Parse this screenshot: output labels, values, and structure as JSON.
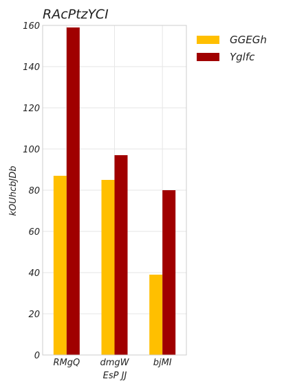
{
  "chart_data": {
    "type": "bar",
    "title": "RAcPtzYCI",
    "xlabel": "EsP JJ",
    "ylabel": "kOUhcbJDb",
    "categories": [
      "RMgQ",
      "dmgW",
      "bjMI"
    ],
    "series": [
      {
        "name": "GGEGh",
        "values": [
          87,
          85,
          39
        ],
        "color": "#FFBF00"
      },
      {
        "name": "Yglfc",
        "values": [
          159,
          97,
          80
        ],
        "color": "#A00000"
      }
    ],
    "ylim": [
      0,
      160
    ],
    "yticks": [
      0,
      20,
      40,
      60,
      80,
      100,
      120,
      140,
      160
    ],
    "grid": true,
    "legend_position": "outside-right-top"
  }
}
